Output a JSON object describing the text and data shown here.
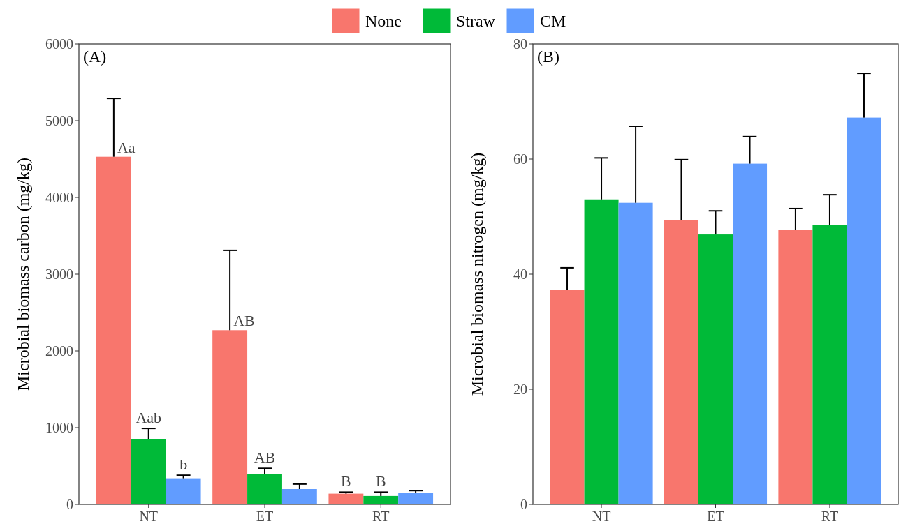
{
  "chart_data": [
    {
      "type": "bar",
      "title": "(A)",
      "ylabel": "Microbial biomass carbon (mg/kg)",
      "categories": [
        "NT",
        "ET",
        "RT"
      ],
      "ylim": [
        0,
        6000
      ],
      "yticks": [
        0,
        1000,
        2000,
        3000,
        4000,
        5000,
        6000
      ],
      "legend": "top",
      "grid": false,
      "series": [
        {
          "name": "None",
          "color": "#f8766d",
          "values": [
            4530,
            2270,
            140
          ],
          "errors": [
            [
              4530,
              5290
            ],
            [
              2270,
              3310
            ],
            [
              140,
              160
            ]
          ],
          "value_labels": [
            "Aa",
            "AB",
            "B"
          ]
        },
        {
          "name": "Straw",
          "color": "#00ba38",
          "values": [
            850,
            400,
            110
          ],
          "errors": [
            [
              850,
              990
            ],
            [
              400,
              470
            ],
            [
              110,
              160
            ]
          ],
          "value_labels": [
            "Aab",
            "AB",
            "B"
          ]
        },
        {
          "name": "CM",
          "color": "#619cff",
          "values": [
            340,
            200,
            150
          ],
          "errors": [
            [
              340,
              380
            ],
            [
              200,
              265
            ],
            [
              150,
              180
            ]
          ],
          "value_labels": [
            "b",
            null,
            null
          ]
        }
      ]
    },
    {
      "type": "bar",
      "title": "(B)",
      "ylabel": "Microbial biomass nitrogen (mg/kg)",
      "categories": [
        "NT",
        "ET",
        "RT"
      ],
      "ylim": [
        0,
        80
      ],
      "yticks": [
        0,
        20,
        40,
        60,
        80
      ],
      "legend": "top",
      "grid": false,
      "series": [
        {
          "name": "None",
          "color": "#f8766d",
          "values": [
            37.3,
            49.4,
            47.7
          ],
          "errors": [
            [
              37.3,
              41.1
            ],
            [
              49.4,
              59.9
            ],
            [
              47.7,
              51.4
            ]
          ]
        },
        {
          "name": "Straw",
          "color": "#00ba38",
          "values": [
            53.0,
            46.9,
            48.5
          ],
          "errors": [
            [
              53.0,
              60.2
            ],
            [
              46.9,
              51.0
            ],
            [
              48.5,
              53.8
            ]
          ]
        },
        {
          "name": "CM",
          "color": "#619cff",
          "values": [
            52.4,
            59.2,
            67.2
          ],
          "errors": [
            [
              52.4,
              65.7
            ],
            [
              59.2,
              63.9
            ],
            [
              67.2,
              74.9
            ]
          ]
        }
      ]
    }
  ]
}
